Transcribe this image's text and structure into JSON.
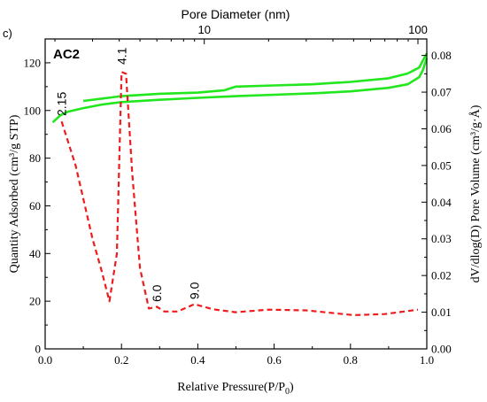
{
  "chart_data": {
    "type": "line",
    "panel_label": "c)",
    "sample_label": "AC2",
    "xlabel": "Relative Pressure(P/P",
    "xlabel_sub": "0",
    "xlabel_end": ")",
    "ylabel_left": "Quantity Adsorbed (cm³/g STP)",
    "ylabel_right": "dV/dlog(D) Pore Volume (cm³/g·Å)",
    "top_xlabel": "Pore Diameter (nm)",
    "xlim": [
      0.0,
      1.0
    ],
    "ylim_left": [
      0,
      130
    ],
    "ylim_right": [
      0.0,
      0.0845
    ],
    "top_xlim_log": [
      1.8,
      110
    ],
    "x_ticks": [
      "0.0",
      "0.2",
      "0.4",
      "0.6",
      "0.8",
      "1.0"
    ],
    "x_tick_values": [
      0.0,
      0.2,
      0.4,
      0.6,
      0.8,
      1.0
    ],
    "yl_ticks": [
      "0",
      "20",
      "40",
      "60",
      "80",
      "100",
      "120"
    ],
    "yl_tick_values": [
      0,
      20,
      40,
      60,
      80,
      100,
      120
    ],
    "yr_ticks": [
      "0.00",
      "0.01",
      "0.02",
      "0.03",
      "0.04",
      "0.05",
      "0.06",
      "0.07",
      "0.08"
    ],
    "yr_tick_values": [
      0.0,
      0.01,
      0.02,
      0.03,
      0.04,
      0.05,
      0.06,
      0.07,
      0.08
    ],
    "top_ticks": [
      "10",
      "100"
    ],
    "top_tick_values": [
      10,
      100
    ],
    "colors": {
      "isotherm": "#22e61e",
      "psd": "#ee1c1c",
      "axis": "#000000"
    },
    "series": [
      {
        "axis": "left",
        "style": "solid",
        "color": "#22e61e",
        "x": [
          0.02,
          0.04,
          0.06,
          0.1,
          0.15,
          0.2,
          0.3,
          0.4,
          0.5,
          0.6,
          0.7,
          0.8,
          0.9,
          0.95,
          0.98,
          0.99,
          1.0
        ],
        "y": [
          95,
          98,
          99.5,
          101,
          102.5,
          103.5,
          104.5,
          105.3,
          106,
          106.6,
          107.2,
          108,
          109.5,
          111,
          114,
          117,
          122
        ]
      },
      {
        "axis": "left",
        "style": "solid",
        "color": "#22e61e",
        "x": [
          0.1,
          0.15,
          0.2,
          0.3,
          0.4,
          0.47,
          0.5,
          0.6,
          0.7,
          0.8,
          0.9,
          0.95,
          0.98,
          0.99,
          1.0
        ],
        "y": [
          104,
          105,
          106,
          107,
          107.5,
          108.5,
          110,
          110.5,
          111,
          112,
          113.5,
          115.5,
          118,
          121,
          124
        ]
      },
      {
        "axis": "pore",
        "style": "dashed",
        "color": "#ee1c1c",
        "d": [
          2.15,
          2.5,
          3.0,
          3.3,
          3.6,
          3.9,
          4.1,
          4.3,
          4.6,
          5.0,
          5.5,
          6.0,
          6.5,
          7.5,
          9.0,
          11,
          14,
          20,
          30,
          50,
          70,
          100
        ],
        "y": [
          0.062,
          0.05,
          0.03,
          0.0215,
          0.013,
          0.026,
          0.0755,
          0.075,
          0.048,
          0.022,
          0.011,
          0.0115,
          0.0102,
          0.0102,
          0.0122,
          0.0108,
          0.01,
          0.0107,
          0.0105,
          0.0092,
          0.0095,
          0.0107
        ]
      }
    ],
    "peak_labels": [
      {
        "text": "2.15",
        "d": 2.15,
        "y": 0.0635
      },
      {
        "text": "4.1",
        "d": 4.1,
        "y": 0.0775
      },
      {
        "text": "6.0",
        "d": 6.0,
        "y": 0.0128
      },
      {
        "text": "9.0",
        "d": 9.0,
        "y": 0.0135
      }
    ]
  }
}
